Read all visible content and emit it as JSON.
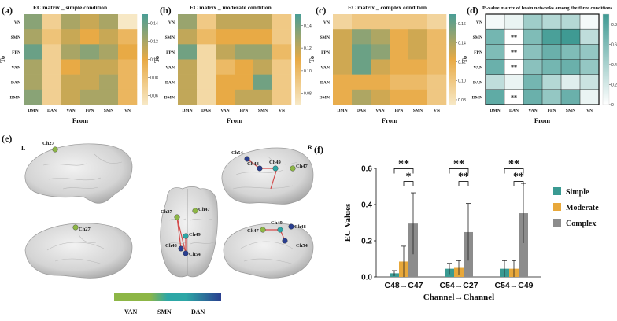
{
  "figure": {
    "panels": [
      {
        "label": "(a)",
        "title": "EC matrix _ simple condition"
      },
      {
        "label": "(b)",
        "title": "EC matrix _ moderate condition"
      },
      {
        "label": "(c)",
        "title": "EC matrix _ complex condition"
      },
      {
        "label": "(d)",
        "title": "P -value matrix of brain networks among the three conditions"
      }
    ],
    "axis_from": "From",
    "axis_to": "To",
    "networks": [
      "VN",
      "SMN",
      "FPN",
      "VAN",
      "DAN",
      "DMN"
    ],
    "x_networks": [
      "DMN",
      "DAN",
      "VAN",
      "FPN",
      "SMN",
      "VN"
    ],
    "panel_e_label": "(e)",
    "panel_f_label": "(f)",
    "hemi_left": "L",
    "hemi_right": "R",
    "network_legend": [
      "VAN",
      "SMN",
      "DAN"
    ],
    "network_colors": {
      "VAN": "#8db646",
      "SMN": "#2da7a6",
      "DAN": "#2a3f8f"
    },
    "channel_labels": [
      "Ch27",
      "Ch47",
      "Ch48",
      "Ch49",
      "Ch54"
    ],
    "palette": {
      "low": "#f7e8c5",
      "mid": "#e8aa45",
      "high": "#4a9e96",
      "pwhite": "#ffffff",
      "pteal": "#3f9a93"
    }
  },
  "chart_data": [
    {
      "type": "heatmap",
      "title": "EC matrix _ simple condition",
      "xlabel": "From",
      "ylabel": "To",
      "rows": [
        "VN",
        "SMN",
        "FPN",
        "VAN",
        "DAN",
        "DMN"
      ],
      "cols": [
        "DMN",
        "DAN",
        "VAN",
        "FPN",
        "SMN",
        "VN"
      ],
      "colorbar": {
        "range": [
          0.05,
          0.15
        ],
        "ticks": [
          0.14,
          0.12,
          0.1,
          0.08,
          0.06
        ]
      },
      "values": [
        [
          0.13,
          0.07,
          0.12,
          0.11,
          0.12,
          0.05
        ],
        [
          0.12,
          0.08,
          0.11,
          0.1,
          0.11,
          0.09
        ],
        [
          0.14,
          0.07,
          0.12,
          0.13,
          0.12,
          0.1
        ],
        [
          0.12,
          0.07,
          0.1,
          0.11,
          0.11,
          0.09
        ],
        [
          0.12,
          0.07,
          0.11,
          0.11,
          0.12,
          0.09
        ],
        [
          0.13,
          0.07,
          0.11,
          0.12,
          0.12,
          0.09
        ]
      ]
    },
    {
      "type": "heatmap",
      "title": "EC matrix _ moderate condition",
      "xlabel": "From",
      "ylabel": "To",
      "rows": [
        "VN",
        "SMN",
        "FPN",
        "VAN",
        "DAN",
        "DMN"
      ],
      "cols": [
        "DMN",
        "DAN",
        "VAN",
        "FPN",
        "SMN",
        "VN"
      ],
      "colorbar": {
        "range": [
          0.07,
          0.15
        ],
        "ticks": [
          0.14,
          0.12,
          0.1,
          0.08
        ]
      },
      "values": [
        [
          0.13,
          0.09,
          0.12,
          0.12,
          0.12,
          0.09
        ],
        [
          0.12,
          0.1,
          0.11,
          0.11,
          0.11,
          0.09
        ],
        [
          0.14,
          0.08,
          0.12,
          0.13,
          0.13,
          0.1
        ],
        [
          0.12,
          0.08,
          0.1,
          0.11,
          0.12,
          0.09
        ],
        [
          0.12,
          0.08,
          0.11,
          0.11,
          0.14,
          0.09
        ],
        [
          0.12,
          0.08,
          0.11,
          0.12,
          0.12,
          0.09
        ]
      ]
    },
    {
      "type": "heatmap",
      "title": "EC matrix _ complex condition",
      "xlabel": "From",
      "ylabel": "To",
      "rows": [
        "VN",
        "SMN",
        "FPN",
        "VAN",
        "DAN",
        "DMN"
      ],
      "cols": [
        "DMN",
        "DAN",
        "VAN",
        "FPN",
        "SMN",
        "VN"
      ],
      "colorbar": {
        "range": [
          0.075,
          0.17
        ],
        "ticks": [
          0.16,
          0.14,
          0.12,
          0.1,
          0.08
        ]
      },
      "values": [
        [
          0.09,
          0.1,
          0.1,
          0.1,
          0.1,
          0.09
        ],
        [
          0.13,
          0.15,
          0.14,
          0.12,
          0.13,
          0.11
        ],
        [
          0.13,
          0.16,
          0.15,
          0.12,
          0.13,
          0.11
        ],
        [
          0.13,
          0.16,
          0.13,
          0.12,
          0.12,
          0.11
        ],
        [
          0.12,
          0.12,
          0.12,
          0.11,
          0.11,
          0.1
        ],
        [
          0.12,
          0.14,
          0.13,
          0.12,
          0.12,
          0.1
        ]
      ]
    },
    {
      "type": "heatmap",
      "title": "P -value matrix of brain networks among the three conditions",
      "xlabel": "From",
      "ylabel": "To",
      "rows": [
        "VN",
        "SMN",
        "FPN",
        "VAN",
        "DAN",
        "DMN"
      ],
      "cols": [
        "DMN",
        "DAN",
        "VAN",
        "FPN",
        "SMN",
        "VN"
      ],
      "colorbar": {
        "range": [
          0,
          0.9
        ],
        "ticks": [
          0.8,
          0.6,
          0.4,
          0.2,
          0
        ]
      },
      "values": [
        [
          0.05,
          0.1,
          0.45,
          0.35,
          0.35,
          0.05
        ],
        [
          0.65,
          0.001,
          0.6,
          0.85,
          0.9,
          0.3
        ],
        [
          0.6,
          0.001,
          0.55,
          0.7,
          0.6,
          0.5
        ],
        [
          0.7,
          0.001,
          0.55,
          0.65,
          0.7,
          0.5
        ],
        [
          0.3,
          0.1,
          0.65,
          0.35,
          0.15,
          0.25
        ],
        [
          0.75,
          0.001,
          0.7,
          0.5,
          0.7,
          0.1
        ]
      ],
      "annotations": [
        {
          "row": "SMN",
          "col": "DAN",
          "text": "**"
        },
        {
          "row": "FPN",
          "col": "DAN",
          "text": "**"
        },
        {
          "row": "VAN",
          "col": "DAN",
          "text": "**"
        },
        {
          "row": "DMN",
          "col": "DAN",
          "text": "**"
        }
      ]
    },
    {
      "type": "bar",
      "title": "",
      "xlabel": "Channel→Channel",
      "ylabel": "EC Values",
      "categories": [
        "C48→C47",
        "C54→C27",
        "C54→C49"
      ],
      "ylim": [
        0,
        0.6
      ],
      "yticks": [
        0.0,
        0.2,
        0.4,
        0.6
      ],
      "series": [
        {
          "name": "Simple",
          "color": "#3a9a92",
          "values": [
            0.02,
            0.045,
            0.045
          ],
          "errors": [
            0.015,
            0.03,
            0.045
          ]
        },
        {
          "name": "Moderate",
          "color": "#e8a83a",
          "values": [
            0.085,
            0.05,
            0.045
          ],
          "errors": [
            0.085,
            0.04,
            0.045
          ]
        },
        {
          "name": "Complex",
          "color": "#8c8c8c",
          "values": [
            0.295,
            0.248,
            0.352
          ],
          "errors": [
            0.17,
            0.158,
            0.165
          ]
        }
      ],
      "significance": [
        {
          "group": "C48→C47",
          "between": [
            "Simple",
            "Complex"
          ],
          "text": "**"
        },
        {
          "group": "C48→C47",
          "between": [
            "Moderate",
            "Complex"
          ],
          "text": "*"
        },
        {
          "group": "C54→C27",
          "between": [
            "Simple",
            "Complex"
          ],
          "text": "**"
        },
        {
          "group": "C54→C27",
          "between": [
            "Moderate",
            "Complex"
          ],
          "text": "**"
        },
        {
          "group": "C54→C49",
          "between": [
            "Simple",
            "Complex"
          ],
          "text": "**"
        },
        {
          "group": "C54→C49",
          "between": [
            "Moderate",
            "Complex"
          ],
          "text": "**"
        }
      ]
    }
  ]
}
